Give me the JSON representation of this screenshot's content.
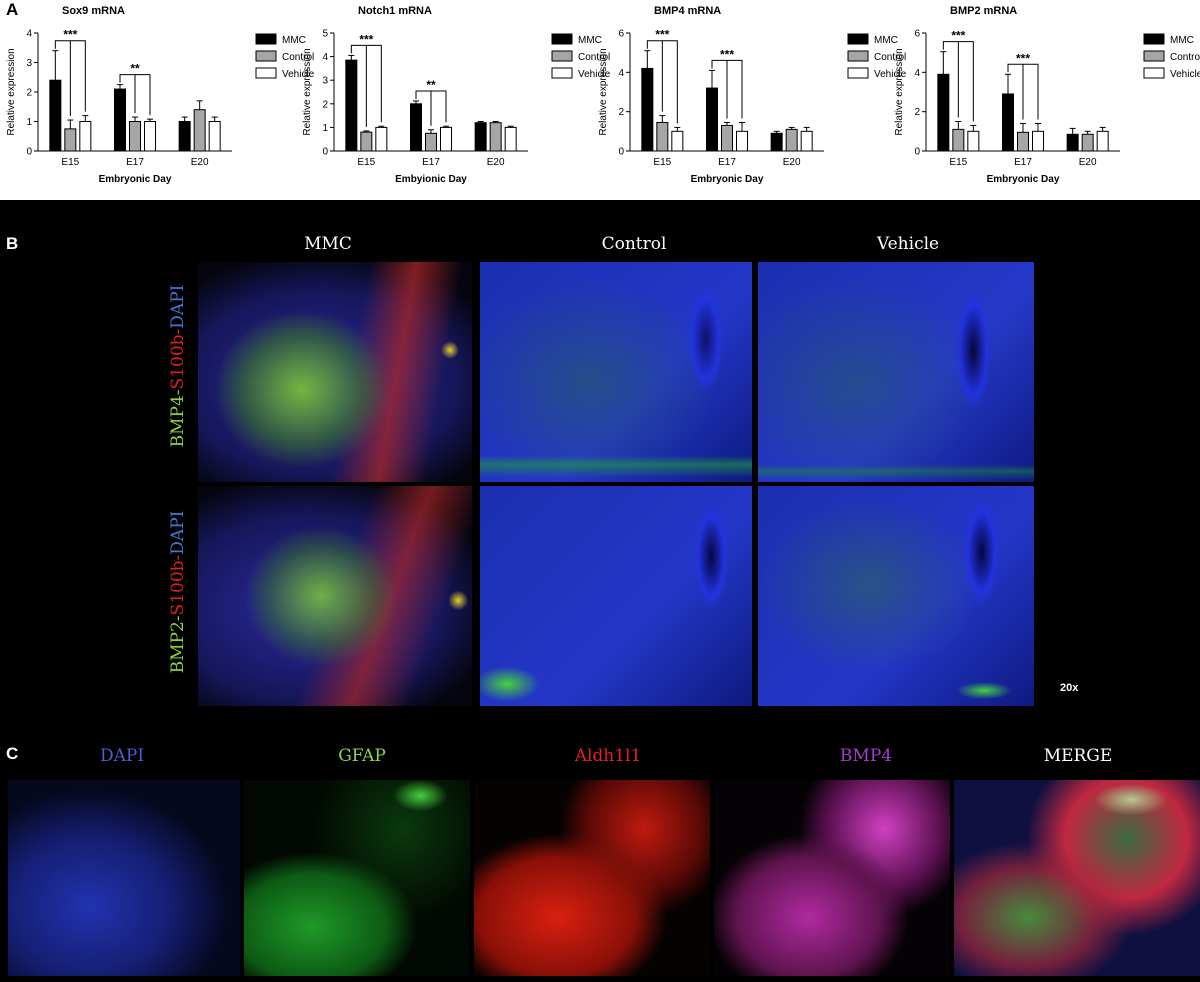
{
  "panels": {
    "a_label": "A",
    "b_label": "B",
    "c_label": "C"
  },
  "chart_data": [
    {
      "type": "bar",
      "title": "Sox9 mRNA",
      "xlabel": "Embryonic Day",
      "ylabel": "Relative expression",
      "categories": [
        "E15",
        "E17",
        "E20"
      ],
      "ylim": [
        0,
        4
      ],
      "yticks": [
        0,
        1,
        2,
        3,
        4
      ],
      "series": [
        {
          "name": "MMC",
          "values": [
            2.4,
            2.1,
            1.0
          ],
          "errors": [
            1.0,
            0.15,
            0.15
          ]
        },
        {
          "name": "Control",
          "values": [
            0.75,
            1.0,
            1.4
          ],
          "errors": [
            0.3,
            0.15,
            0.3
          ]
        },
        {
          "name": "Vehicle",
          "values": [
            1.0,
            1.0,
            1.0
          ],
          "errors": [
            0.2,
            0.08,
            0.15
          ]
        }
      ],
      "significance": [
        {
          "group": "E15",
          "label": "***"
        },
        {
          "group": "E17",
          "label": "**"
        }
      ]
    },
    {
      "type": "bar",
      "title": "Notch1 mRNA",
      "xlabel": "Embyionic Day",
      "ylabel": "Relative expression",
      "categories": [
        "E15",
        "E17",
        "E20"
      ],
      "ylim": [
        0,
        5
      ],
      "yticks": [
        0,
        1,
        2,
        3,
        4,
        5
      ],
      "series": [
        {
          "name": "MMC",
          "values": [
            3.85,
            2.0,
            1.2
          ],
          "errors": [
            0.2,
            0.12,
            0.05
          ]
        },
        {
          "name": "Control",
          "values": [
            0.8,
            0.75,
            1.2
          ],
          "errors": [
            0.05,
            0.15,
            0.05
          ]
        },
        {
          "name": "Vehicle",
          "values": [
            1.0,
            1.0,
            1.0
          ],
          "errors": [
            0.05,
            0.05,
            0.05
          ]
        }
      ],
      "significance": [
        {
          "group": "E15",
          "label": "***"
        },
        {
          "group": "E17",
          "label": "**"
        }
      ]
    },
    {
      "type": "bar",
      "title": "BMP4 mRNA",
      "xlabel": "Embryonic Day",
      "ylabel": "Relative expression",
      "categories": [
        "E15",
        "E17",
        "E20"
      ],
      "ylim": [
        0,
        6
      ],
      "yticks": [
        0,
        2,
        4,
        6
      ],
      "series": [
        {
          "name": "MMC",
          "values": [
            4.2,
            3.2,
            0.9
          ],
          "errors": [
            0.9,
            0.9,
            0.1
          ]
        },
        {
          "name": "Control",
          "values": [
            1.45,
            1.3,
            1.1
          ],
          "errors": [
            0.35,
            0.15,
            0.1
          ]
        },
        {
          "name": "Vehicle",
          "values": [
            1.0,
            1.0,
            1.0
          ],
          "errors": [
            0.2,
            0.45,
            0.2
          ]
        }
      ],
      "significance": [
        {
          "group": "E15",
          "label": "***"
        },
        {
          "group": "E17",
          "label": "***"
        }
      ]
    },
    {
      "type": "bar",
      "title": "BMP2 mRNA",
      "xlabel": "Embryonic Day",
      "ylabel": "Relative expression",
      "categories": [
        "E15",
        "E17",
        "E20"
      ],
      "ylim": [
        0,
        6
      ],
      "yticks": [
        0,
        2,
        4,
        6
      ],
      "series": [
        {
          "name": "MMC",
          "values": [
            3.9,
            2.9,
            0.85
          ],
          "errors": [
            1.15,
            1.0,
            0.3
          ]
        },
        {
          "name": "Control",
          "values": [
            1.1,
            0.95,
            0.85
          ],
          "errors": [
            0.4,
            0.45,
            0.15
          ]
        },
        {
          "name": "Vehicle",
          "values": [
            1.0,
            1.0,
            1.0
          ],
          "errors": [
            0.3,
            0.4,
            0.2
          ]
        }
      ],
      "significance": [
        {
          "group": "E15",
          "label": "***"
        },
        {
          "group": "E17",
          "label": "***"
        }
      ]
    }
  ],
  "series_colors": {
    "MMC": "#000000",
    "Control": "#a6a6a6",
    "Vehicle": "#ffffff"
  },
  "panel_b": {
    "columns": [
      "MMC",
      "Control",
      "Vehicle"
    ],
    "row1": {
      "part1": "BMP4-",
      "part2": "S100b-",
      "part3": "DAPI"
    },
    "row2": {
      "part1": "BMP2-",
      "part2": "S100b-",
      "part3": "DAPI"
    },
    "magnification": "20x",
    "label_colors": {
      "green": "#8cd23c",
      "red": "#e0201c",
      "blue": "#3f78d6"
    }
  },
  "panel_c": {
    "titles": [
      "DAPI",
      "GFAP",
      "Aldh1l1",
      "BMP4",
      "MERGE"
    ],
    "title_colors": [
      "#4a5fd1",
      "#8ad84a",
      "#e8201e",
      "#a23fd0",
      "#ffffff"
    ]
  }
}
